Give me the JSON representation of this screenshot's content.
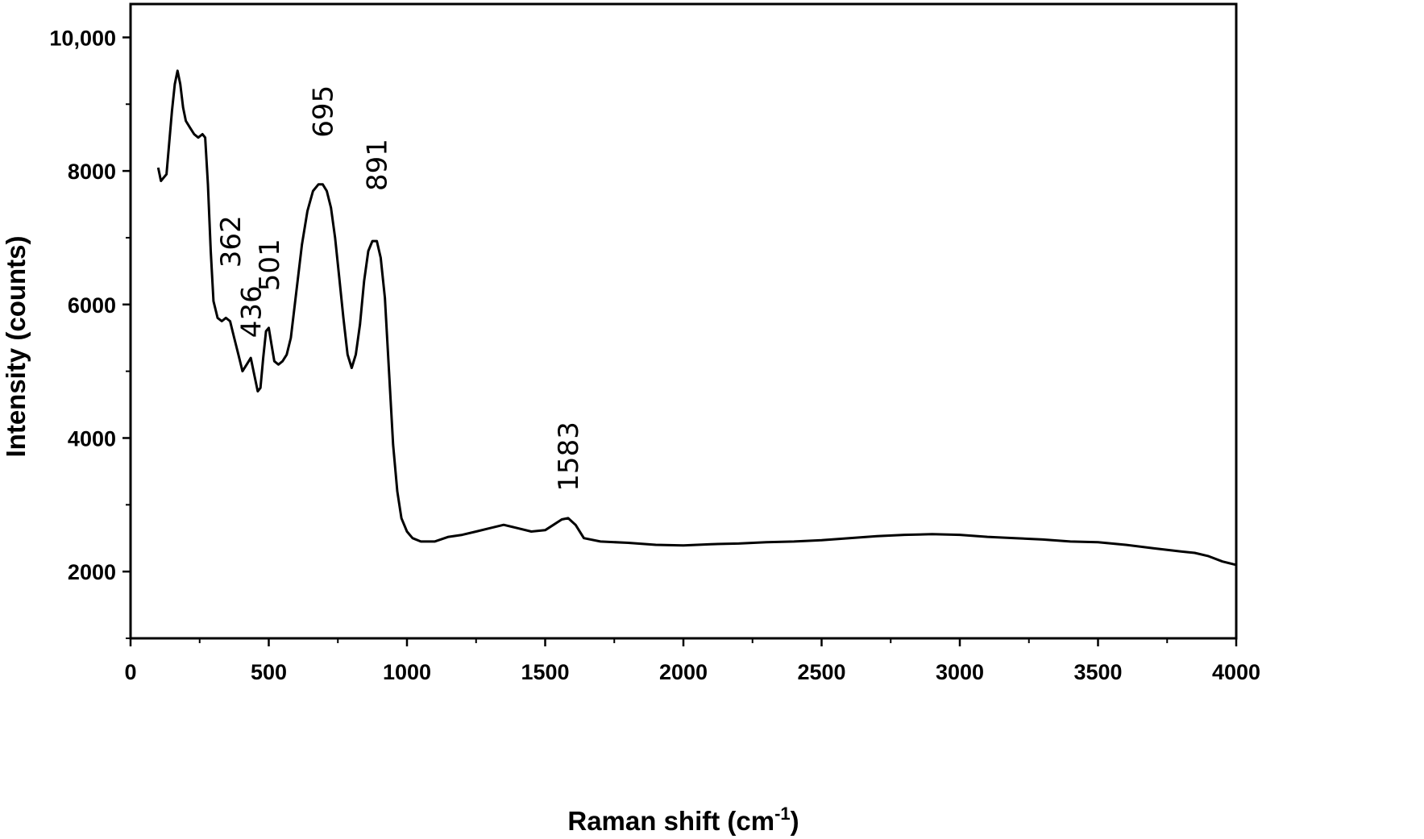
{
  "chart_data": {
    "type": "line",
    "title": "",
    "xlabel": "Raman shift (cm",
    "xlabel_sup": "-1",
    "xlabel_close": ")",
    "ylabel": "Intensity (counts)",
    "xlim": [
      0,
      4000
    ],
    "ylim": [
      1000,
      10500
    ],
    "x_ticks": [
      0,
      500,
      1000,
      1500,
      2000,
      2500,
      3000,
      3500,
      4000
    ],
    "x_tick_labels": [
      "0",
      "500",
      "1000",
      "1500",
      "2000",
      "2500",
      "3000",
      "3500",
      "4000"
    ],
    "x_minor_ticks": [
      250,
      750,
      1250,
      1750,
      2250,
      2750,
      3250,
      3750
    ],
    "y_ticks": [
      2000,
      4000,
      6000,
      8000,
      10000
    ],
    "y_tick_labels": [
      "2000",
      "4000",
      "6000",
      "8000",
      "10,000"
    ],
    "y_minor_ticks": [
      1000,
      3000,
      5000,
      7000,
      9000
    ],
    "grid": false,
    "series": [
      {
        "color": "#000000",
        "x": [
          100,
          110,
          130,
          150,
          160,
          170,
          180,
          190,
          200,
          215,
          230,
          245,
          260,
          270,
          280,
          290,
          300,
          315,
          330,
          345,
          360,
          375,
          390,
          405,
          420,
          435,
          445,
          460,
          470,
          480,
          490,
          500,
          510,
          520,
          535,
          550,
          565,
          580,
          600,
          620,
          640,
          660,
          680,
          695,
          710,
          725,
          740,
          755,
          770,
          785,
          800,
          815,
          830,
          845,
          860,
          875,
          891,
          905,
          920,
          935,
          950,
          965,
          980,
          1000,
          1020,
          1050,
          1100,
          1150,
          1200,
          1250,
          1300,
          1350,
          1400,
          1450,
          1500,
          1530,
          1560,
          1583,
          1610,
          1640,
          1700,
          1800,
          1900,
          2000,
          2100,
          2200,
          2300,
          2400,
          2500,
          2600,
          2700,
          2800,
          2900,
          3000,
          3100,
          3200,
          3300,
          3400,
          3500,
          3600,
          3700,
          3800,
          3850,
          3900,
          3950,
          4000
        ],
        "y": [
          8050,
          7850,
          7950,
          8900,
          9300,
          9500,
          9300,
          8950,
          8750,
          8650,
          8550,
          8500,
          8550,
          8500,
          7800,
          6800,
          6050,
          5800,
          5750,
          5800,
          5750,
          5500,
          5250,
          5000,
          5100,
          5200,
          5000,
          4700,
          4750,
          5200,
          5600,
          5650,
          5400,
          5150,
          5100,
          5150,
          5250,
          5500,
          6200,
          6900,
          7400,
          7700,
          7800,
          7800,
          7700,
          7450,
          7000,
          6400,
          5800,
          5250,
          5050,
          5250,
          5700,
          6350,
          6800,
          6950,
          6950,
          6700,
          6100,
          5000,
          3900,
          3200,
          2800,
          2600,
          2500,
          2450,
          2450,
          2520,
          2550,
          2600,
          2650,
          2700,
          2650,
          2600,
          2620,
          2700,
          2780,
          2800,
          2700,
          2500,
          2450,
          2430,
          2400,
          2390,
          2410,
          2420,
          2440,
          2450,
          2470,
          2500,
          2530,
          2550,
          2560,
          2550,
          2520,
          2500,
          2480,
          2450,
          2440,
          2400,
          2350,
          2300,
          2280,
          2230,
          2150,
          2100
        ]
      }
    ],
    "annotations": [
      {
        "text": "362",
        "x": 362,
        "y": 6550
      },
      {
        "text": "436",
        "x": 436,
        "y": 5500
      },
      {
        "text": "501",
        "x": 501,
        "y": 6200
      },
      {
        "text": "695",
        "x": 695,
        "y": 8500
      },
      {
        "text": "891",
        "x": 891,
        "y": 7700
      },
      {
        "text": "1583",
        "x": 1583,
        "y": 3200
      }
    ]
  }
}
